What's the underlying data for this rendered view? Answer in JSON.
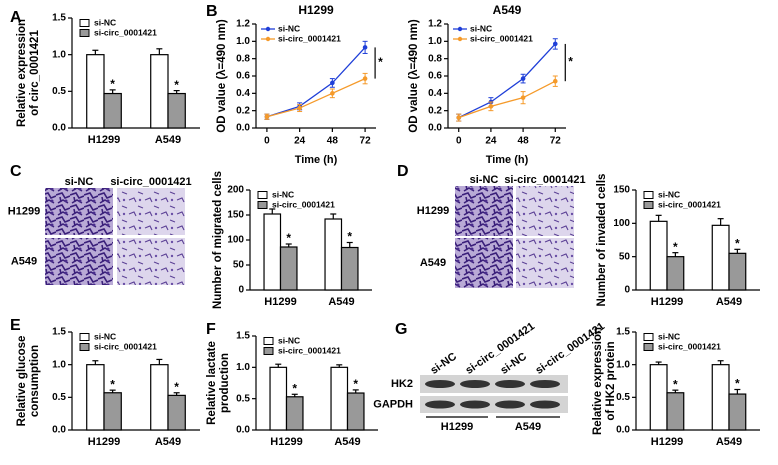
{
  "panel_letters": [
    "A",
    "B",
    "C",
    "D",
    "E",
    "F",
    "G"
  ],
  "micrographs": [
    {
      "columns": [
        "si-NC",
        "si-circ_0001421"
      ],
      "rows": [
        "H1299",
        "A549"
      ]
    },
    {
      "columns": [
        "si-NC",
        "si-circ_0001421"
      ],
      "rows": [
        "H1299",
        "A549"
      ]
    }
  ],
  "blot": {
    "lanes": [
      "si-NC",
      "si-circ_0001421",
      "si-NC",
      "si-circ_0001421"
    ],
    "rows": [
      "HK2",
      "GAPDH"
    ],
    "groups": [
      "H1299",
      "A549"
    ]
  },
  "chart_data": [
    {
      "type": "bar",
      "ylabel": [
        "Relative expression",
        "of circ_0001421"
      ],
      "categories": [
        "H1299",
        "A549"
      ],
      "legend": "upper left",
      "series": [
        {
          "name": "si-NC",
          "color": "#ffffff",
          "values": [
            1.0,
            1.0
          ],
          "errors": [
            0.06,
            0.08
          ]
        },
        {
          "name": "si-circ_0001421",
          "color": "#999999",
          "values": [
            0.47,
            0.47
          ],
          "errors": [
            0.05,
            0.04
          ]
        }
      ],
      "significance": [
        "*",
        "*"
      ],
      "ylim": [
        0,
        1.5
      ],
      "yticks": [
        {
          "value": 0,
          "label": "0.0"
        },
        {
          "value": 0.5,
          "label": "0.5"
        },
        {
          "value": 1,
          "label": "1.0"
        },
        {
          "value": 1.5,
          "label": "1.5"
        }
      ]
    },
    {
      "type": "line",
      "title": "H1299",
      "xlabel": "Time (h)",
      "ylabel": [
        "OD value (λ=490 nm)"
      ],
      "x": [
        0,
        24,
        48,
        72
      ],
      "legend": "upper left",
      "series": [
        {
          "name": "si-NC",
          "color": "#1f3fd8",
          "values": [
            0.13,
            0.25,
            0.52,
            0.93
          ],
          "errors": [
            0.03,
            0.04,
            0.05,
            0.07
          ]
        },
        {
          "name": "si-circ_0001421",
          "color": "#f59a2a",
          "values": [
            0.13,
            0.23,
            0.4,
            0.57
          ],
          "errors": [
            0.03,
            0.04,
            0.05,
            0.06
          ]
        }
      ],
      "significance": "*",
      "xlim": [
        -8,
        80
      ],
      "xticks": [
        0,
        24,
        48,
        72
      ],
      "ylim": [
        0,
        1.2
      ],
      "yticks": [
        {
          "value": 0,
          "label": "0.0"
        },
        {
          "value": 0.2,
          "label": "0.2"
        },
        {
          "value": 0.4,
          "label": "0.4"
        },
        {
          "value": 0.6,
          "label": "0.6"
        },
        {
          "value": 0.8,
          "label": "0.8"
        },
        {
          "value": 1,
          "label": "1.0"
        },
        {
          "value": 1.2,
          "label": "1.2"
        }
      ]
    },
    {
      "type": "line",
      "title": "A549",
      "xlabel": "Time (h)",
      "ylabel": [
        "OD value (λ=490 nm)"
      ],
      "x": [
        0,
        24,
        48,
        72
      ],
      "legend": "upper left",
      "series": [
        {
          "name": "si-NC",
          "color": "#1f3fd8",
          "values": [
            0.12,
            0.3,
            0.57,
            0.97
          ],
          "errors": [
            0.04,
            0.05,
            0.05,
            0.06
          ]
        },
        {
          "name": "si-circ_0001421",
          "color": "#f59a2a",
          "values": [
            0.12,
            0.25,
            0.35,
            0.54
          ],
          "errors": [
            0.04,
            0.05,
            0.07,
            0.06
          ]
        }
      ],
      "significance": "*",
      "xlim": [
        -8,
        80
      ],
      "xticks": [
        0,
        24,
        48,
        72
      ],
      "ylim": [
        0,
        1.2
      ],
      "yticks": [
        {
          "value": 0,
          "label": "0.0"
        },
        {
          "value": 0.2,
          "label": "0.2"
        },
        {
          "value": 0.4,
          "label": "0.4"
        },
        {
          "value": 0.6,
          "label": "0.6"
        },
        {
          "value": 0.8,
          "label": "0.8"
        },
        {
          "value": 1,
          "label": "1.0"
        },
        {
          "value": 1.2,
          "label": "1.2"
        }
      ]
    },
    {
      "type": "bar",
      "ylabel": [
        "Number of migrated cells"
      ],
      "categories": [
        "H1299",
        "A549"
      ],
      "legend": "upper left",
      "series": [
        {
          "name": "si-NC",
          "color": "#ffffff",
          "values": [
            152,
            142
          ],
          "errors": [
            10,
            10
          ]
        },
        {
          "name": "si-circ_0001421",
          "color": "#999999",
          "values": [
            86,
            85
          ],
          "errors": [
            6,
            10
          ]
        }
      ],
      "significance": [
        "*",
        "*"
      ],
      "ylim": [
        0,
        200
      ],
      "yticks": [
        0,
        50,
        100,
        150,
        200
      ]
    },
    {
      "type": "bar",
      "ylabel": [
        "Number of invaded cells"
      ],
      "categories": [
        "H1299",
        "A549"
      ],
      "legend": "upper left",
      "series": [
        {
          "name": "si-NC",
          "color": "#ffffff",
          "values": [
            103,
            97
          ],
          "errors": [
            9,
            10
          ]
        },
        {
          "name": "si-circ_0001421",
          "color": "#999999",
          "values": [
            50,
            55
          ],
          "errors": [
            6,
            6
          ]
        }
      ],
      "significance": [
        "*",
        "*"
      ],
      "ylim": [
        0,
        150
      ],
      "yticks": [
        0,
        50,
        100,
        150
      ]
    },
    {
      "type": "bar",
      "ylabel": [
        "Relative glucose",
        "consumption"
      ],
      "categories": [
        "H1299",
        "A549"
      ],
      "legend": "upper left",
      "series": [
        {
          "name": "si-NC",
          "color": "#ffffff",
          "values": [
            1.0,
            1.0
          ],
          "errors": [
            0.06,
            0.08
          ]
        },
        {
          "name": "si-circ_0001421",
          "color": "#999999",
          "values": [
            0.57,
            0.53
          ],
          "errors": [
            0.04,
            0.04
          ]
        }
      ],
      "significance": [
        "*",
        "*"
      ],
      "ylim": [
        0,
        1.5
      ],
      "yticks": [
        {
          "value": 0,
          "label": "0.0"
        },
        {
          "value": 0.5,
          "label": "0.5"
        },
        {
          "value": 1,
          "label": "1.0"
        },
        {
          "value": 1.5,
          "label": "1.5"
        }
      ]
    },
    {
      "type": "bar",
      "ylabel": [
        "Relative lactate",
        "production"
      ],
      "categories": [
        "H1299",
        "A549"
      ],
      "legend": "upper left",
      "series": [
        {
          "name": "si-NC",
          "color": "#ffffff",
          "values": [
            1.0,
            1.0
          ],
          "errors": [
            0.05,
            0.04
          ]
        },
        {
          "name": "si-circ_0001421",
          "color": "#999999",
          "values": [
            0.53,
            0.59
          ],
          "errors": [
            0.04,
            0.05
          ]
        }
      ],
      "significance": [
        "*",
        "*"
      ],
      "ylim": [
        0,
        1.5
      ],
      "yticks": [
        {
          "value": 0,
          "label": "0.0"
        },
        {
          "value": 0.5,
          "label": "0.5"
        },
        {
          "value": 1,
          "label": "1.0"
        },
        {
          "value": 1.5,
          "label": "1.5"
        }
      ]
    },
    {
      "type": "bar",
      "ylabel": [
        "Relative expression",
        "of HK2 protein"
      ],
      "categories": [
        "H1299",
        "A549"
      ],
      "legend": "upper left",
      "series": [
        {
          "name": "si-NC",
          "color": "#ffffff",
          "values": [
            1.0,
            1.0
          ],
          "errors": [
            0.04,
            0.06
          ]
        },
        {
          "name": "si-circ_0001421",
          "color": "#999999",
          "values": [
            0.57,
            0.55
          ],
          "errors": [
            0.04,
            0.07
          ]
        }
      ],
      "significance": [
        "*",
        "*"
      ],
      "ylim": [
        0,
        1.5
      ],
      "yticks": [
        {
          "value": 0,
          "label": "0.0"
        },
        {
          "value": 0.5,
          "label": "0.5"
        },
        {
          "value": 1,
          "label": "1.0"
        },
        {
          "value": 1.5,
          "label": "1.5"
        }
      ]
    }
  ]
}
